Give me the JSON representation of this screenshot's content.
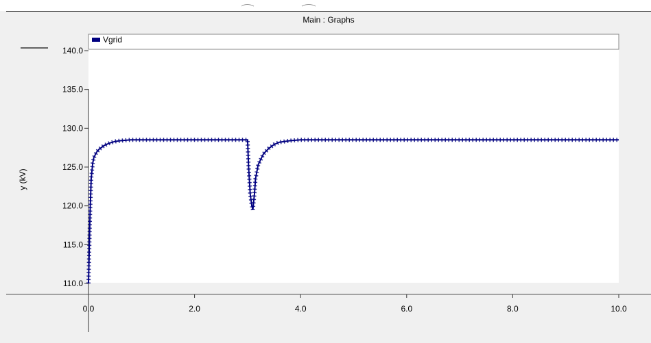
{
  "window": {
    "title": "Main : Graphs"
  },
  "chart_data": {
    "type": "line",
    "title": "",
    "xlabel": "",
    "ylabel": "y (kV)",
    "xlim": [
      0,
      10
    ],
    "ylim": [
      110,
      140
    ],
    "grid": false,
    "legend_position": "top-left",
    "x_ticks": [
      "0.0",
      "2.0",
      "4.0",
      "6.0",
      "8.0",
      "10.0"
    ],
    "y_ticks": [
      "110.0",
      "115.0",
      "120.0",
      "125.0",
      "130.0",
      "135.0",
      "140.0"
    ],
    "series": [
      {
        "name": "Vgrid",
        "color": "#000080",
        "x": [
          0.0,
          0.03,
          0.05,
          0.08,
          0.1,
          0.15,
          0.2,
          0.3,
          0.4,
          0.5,
          0.6,
          0.8,
          1.0,
          2.0,
          3.0,
          3.0,
          3.02,
          3.05,
          3.08,
          3.1,
          3.13,
          3.15,
          3.2,
          3.3,
          3.4,
          3.5,
          3.6,
          3.8,
          4.0,
          6.0,
          8.0,
          10.0
        ],
        "y": [
          110.0,
          119.0,
          123.5,
          125.5,
          126.2,
          126.9,
          127.3,
          127.8,
          128.1,
          128.3,
          128.4,
          128.5,
          128.5,
          128.5,
          128.5,
          128.5,
          125.0,
          121.5,
          120.0,
          119.5,
          121.5,
          123.5,
          125.3,
          126.7,
          127.4,
          127.9,
          128.2,
          128.4,
          128.5,
          128.5,
          128.5,
          128.5
        ]
      }
    ]
  }
}
